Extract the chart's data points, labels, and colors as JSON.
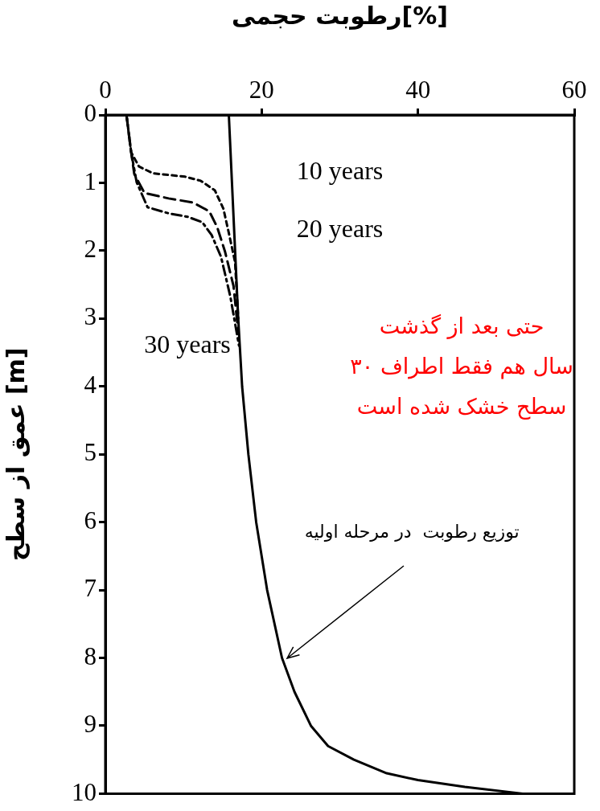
{
  "chart_data": {
    "type": "line",
    "xlabel": "رطوبت حجمی[%]",
    "ylabel": "عمق از سطح [m]",
    "xlim": [
      0,
      60
    ],
    "xticks": [
      0,
      20,
      40,
      60
    ],
    "ylim": [
      10,
      0
    ],
    "yticks": [
      0,
      1,
      2,
      3,
      4,
      5,
      6,
      7,
      8,
      9,
      10
    ],
    "grid": false,
    "legend": false,
    "series": [
      {
        "color": "#000000",
        "line_style": "solid",
        "x": [
          15.8,
          16.2,
          16.6,
          17.0,
          17.5,
          18.3,
          19.3,
          20.7,
          22.6,
          24.2,
          26.3,
          28.5,
          31.8,
          36.0,
          40.0,
          46.0,
          53.4
        ],
        "values": [
          0,
          1,
          2,
          3,
          4,
          5,
          6,
          7,
          8,
          8.5,
          9,
          9.3,
          9.5,
          9.7,
          9.8,
          9.9,
          10
        ]
      },
      {
        "color": "#000000",
        "line_style": "dotted",
        "x": [
          2.7,
          3.3,
          4.3,
          6.1,
          10.2,
          12.2,
          14.0,
          15.1,
          15.8,
          16.6,
          17.0
        ],
        "values": [
          0,
          0.55,
          0.76,
          0.86,
          0.91,
          0.97,
          1.11,
          1.38,
          1.74,
          2.17,
          3
        ]
      },
      {
        "color": "#000000",
        "line_style": "dashed",
        "x": [
          2.7,
          3.3,
          3.7,
          5.0,
          8.1,
          11.2,
          13.3,
          14.3,
          15.3,
          16.4,
          17.0
        ],
        "values": [
          0,
          0.55,
          0.87,
          1.15,
          1.23,
          1.29,
          1.42,
          1.65,
          2.01,
          2.52,
          3.2
        ]
      },
      {
        "color": "#000000",
        "line_style": "dashdot",
        "x": [
          2.7,
          3.3,
          4.0,
          5.4,
          8.1,
          10.5,
          12.4,
          13.6,
          14.8,
          16.0,
          17.1
        ],
        "values": [
          0,
          0.55,
          0.99,
          1.36,
          1.45,
          1.5,
          1.58,
          1.77,
          2.09,
          2.68,
          3.4
        ]
      }
    ],
    "annotations": [
      "10 years",
      "20 years",
      "30 years",
      "حتی بعد از گذشت\n۳۰ سال هم فقط اطراف\nسطح خشک شده است",
      "توزیع رطوبت  در مرحله اولیه"
    ]
  }
}
